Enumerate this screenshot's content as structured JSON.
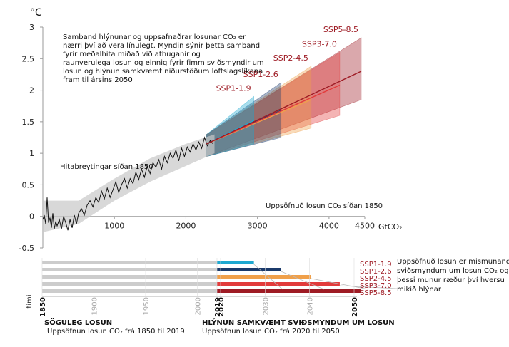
{
  "chart_data": [
    {
      "type": "line",
      "ylabel": "°C",
      "xlabel": "GtCO₂",
      "xlim": [
        0,
        4500
      ],
      "ylim": [
        -0.5,
        3
      ],
      "x_ticks": [
        1000,
        2000,
        3000,
        4000,
        4500
      ],
      "y_ticks": [
        -0.5,
        0,
        0.5,
        1,
        1.5,
        2,
        2.5,
        3
      ],
      "y_tick_labels": [
        "-0.5",
        "0",
        "0.5",
        "1",
        "1.5",
        "2",
        "2.5",
        "3"
      ],
      "x_tick_labels": [
        "1000",
        "2000",
        "3000",
        "4000",
        "4500"
      ],
      "annotation_main": [
        "Samband hlýnunar og uppsafnaðrar losunar  CO₂ er",
        "nærri því að vera línulegt. Myndin sýnir þetta samband",
        "fyrir meðalhita miðað við athuganir og",
        "raunverulega losun og einnig fyrir fimm sviðsmyndir um",
        "losun  og hlýnun samkvæmt niðurstöðum loftslagslíkana",
        "fram til ársins 2050"
      ],
      "historical_label": "Hitabreytingar síðan 1850",
      "cumulative_label": "Uppsöfnuð losun CO₂ síðan 1850",
      "historical": {
        "color": "#111111",
        "x": [
          0,
          20,
          40,
          60,
          80,
          100,
          120,
          140,
          160,
          180,
          200,
          230,
          260,
          290,
          320,
          350,
          380,
          410,
          440,
          470,
          500,
          540,
          580,
          620,
          660,
          700,
          740,
          780,
          820,
          860,
          900,
          940,
          980,
          1020,
          1060,
          1100,
          1140,
          1180,
          1220,
          1260,
          1300,
          1340,
          1380,
          1420,
          1460,
          1500,
          1540,
          1580,
          1620,
          1660,
          1700,
          1740,
          1780,
          1820,
          1860,
          1900,
          1940,
          1980,
          2020,
          2060,
          2100,
          2140,
          2180,
          2220,
          2260,
          2300,
          2340,
          2380
        ],
        "y": [
          -0.05,
          0.02,
          -0.12,
          0.3,
          -0.1,
          -0.02,
          -0.18,
          0.05,
          -0.2,
          -0.08,
          -0.15,
          -0.05,
          -0.2,
          0.0,
          -0.1,
          -0.22,
          -0.05,
          -0.18,
          0.02,
          -0.12,
          0.05,
          0.12,
          0.02,
          0.18,
          0.25,
          0.15,
          0.3,
          0.22,
          0.4,
          0.28,
          0.45,
          0.3,
          0.42,
          0.55,
          0.38,
          0.5,
          0.6,
          0.45,
          0.6,
          0.52,
          0.7,
          0.58,
          0.75,
          0.62,
          0.8,
          0.68,
          0.85,
          0.78,
          0.9,
          0.75,
          0.95,
          0.85,
          1.0,
          0.92,
          1.05,
          0.88,
          1.08,
          0.95,
          1.1,
          1.02,
          1.15,
          1.05,
          1.18,
          1.08,
          1.25,
          1.12,
          1.2,
          1.15
        ]
      },
      "historical_band": {
        "color": "#c8c8c8",
        "x": [
          0,
          500,
          1000,
          1500,
          2000,
          2400
        ],
        "low": [
          -0.25,
          -0.12,
          0.25,
          0.55,
          0.8,
          1.0
        ],
        "high": [
          0.25,
          0.25,
          0.6,
          0.92,
          1.15,
          1.3
        ]
      },
      "series": [
        {
          "name": "SSP1-1.9",
          "color": "#1ea8d0",
          "x_start": 2290,
          "x_end": 2950,
          "y_start": 1.15,
          "y_end": 1.52,
          "low_start": 0.95,
          "low_end": 1.15,
          "high_start": 1.3,
          "high_end": 1.9
        },
        {
          "name": "SSP1-2.6",
          "color": "#1b3a6b",
          "x_start": 2290,
          "x_end": 3330,
          "y_start": 1.15,
          "y_end": 1.68,
          "low_start": 0.95,
          "low_end": 1.25,
          "high_start": 1.3,
          "high_end": 2.12
        },
        {
          "name": "SSP2-4.5",
          "color": "#f0a04a",
          "x_start": 2290,
          "x_end": 3750,
          "y_start": 1.15,
          "y_end": 1.85,
          "low_start": 0.95,
          "low_end": 1.4,
          "high_start": 1.3,
          "high_end": 2.38
        },
        {
          "name": "SSP3-7.0",
          "color": "#e23b3b",
          "x_start": 2290,
          "x_end": 4150,
          "y_start": 1.15,
          "y_end": 2.08,
          "low_start": 0.95,
          "low_end": 1.6,
          "high_start": 1.3,
          "high_end": 2.6
        },
        {
          "name": "SSP5-8.5",
          "color": "#9e1b24",
          "x_start": 2290,
          "x_end": 4450,
          "y_start": 1.15,
          "y_end": 2.3,
          "low_start": 0.95,
          "low_end": 1.85,
          "high_start": 1.3,
          "high_end": 2.83
        }
      ],
      "ssp_label_color": "#9e1b24"
    },
    {
      "type": "bar",
      "x_axis_label": "tími",
      "years": [
        1850,
        1900,
        1950,
        2000,
        2019,
        2020,
        2030,
        2040,
        2050
      ],
      "year_labels": [
        "1850",
        "1900",
        "1950",
        "2000",
        "2019",
        "2020",
        "2030",
        "2040",
        "2050"
      ],
      "bold_years": [
        "1850",
        "2019",
        "2020",
        "2050"
      ],
      "historical_bar_color": "#cccccc",
      "bars": [
        {
          "name": "SSP1-1.9",
          "color": "#1ea8d0",
          "cumulative_end": 2950
        },
        {
          "name": "SSP1-2.6",
          "color": "#1b3a6b",
          "cumulative_end": 3330
        },
        {
          "name": "SSP2-4.5",
          "color": "#f0a04a",
          "cumulative_end": 3750
        },
        {
          "name": "SSP3-7.0",
          "color": "#e23b3b",
          "cumulative_end": 4150
        },
        {
          "name": "SSP5-8.5",
          "color": "#9e1b24",
          "cumulative_end": 4450
        }
      ],
      "side_note": [
        "Uppsöfnuð losun er mismunandi í",
        "sviðsmyndum um losun CO₂ og",
        "þessi munur ræður því  hversu",
        "mikið hlýnar"
      ],
      "historic_title": "SÖGULEG LOSUN",
      "historic_sub": "Uppsöfnun losun CO₂ frá 1850 til 2019",
      "future_title": "HLÝNUN SAMKVÆMT SVIÐSMYNDUM UM LOSUN",
      "future_sub": "Uppsöfnun losun CO₂ frá 2020 til 2050"
    }
  ]
}
